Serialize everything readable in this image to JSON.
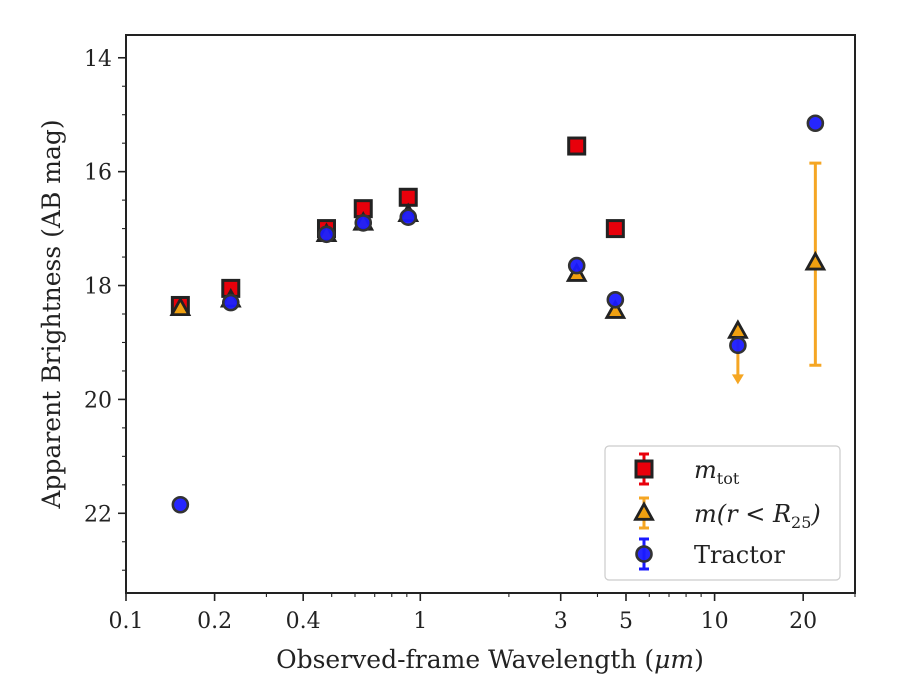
{
  "chart_data": {
    "type": "scatter",
    "xlabel": "Observed-frame Wavelength (",
    "xlabel_unit": "μm",
    "xlabel_close": ")",
    "ylabel": "Apparent Brightness (AB mag)",
    "xscale": "log",
    "xlim": [
      0.1,
      30
    ],
    "ylim": [
      23.4,
      13.6
    ],
    "y_inverted": true,
    "x_ticks": [
      {
        "value": 0.1,
        "label": "0.1"
      },
      {
        "value": 0.2,
        "label": "0.2"
      },
      {
        "value": 0.4,
        "label": "0.4"
      },
      {
        "value": 1,
        "label": "1"
      },
      {
        "value": 3,
        "label": "3"
      },
      {
        "value": 5,
        "label": "5"
      },
      {
        "value": 10,
        "label": "10"
      },
      {
        "value": 20,
        "label": "20"
      }
    ],
    "y_ticks": [
      {
        "value": 14,
        "label": "14"
      },
      {
        "value": 16,
        "label": "16"
      },
      {
        "value": 18,
        "label": "18"
      },
      {
        "value": 20,
        "label": "20"
      },
      {
        "value": 22,
        "label": "22"
      }
    ],
    "grid": false,
    "legend_position": "bottom-right",
    "series": [
      {
        "name": "m_tot",
        "legend_main": "m",
        "legend_sub": "tot",
        "marker": "square",
        "color": "#e8000b",
        "edge_color": "#222222",
        "error_color": "#e8000b",
        "points": [
          {
            "x": 0.153,
            "y": 18.35
          },
          {
            "x": 0.227,
            "y": 18.05
          },
          {
            "x": 0.48,
            "y": 17.0
          },
          {
            "x": 0.64,
            "y": 16.65
          },
          {
            "x": 0.91,
            "y": 16.45
          },
          {
            "x": 3.4,
            "y": 15.55
          },
          {
            "x": 4.6,
            "y": 17.0
          }
        ]
      },
      {
        "name": "m(r < R25)",
        "legend_main": "m(r < R",
        "legend_sub": "25",
        "legend_close": ")",
        "marker": "triangle",
        "color": "#f0a010",
        "edge_color": "#222222",
        "error_color": "#f5a623",
        "points": [
          {
            "x": 0.153,
            "y": 18.4
          },
          {
            "x": 0.227,
            "y": 18.25
          },
          {
            "x": 0.48,
            "y": 17.1
          },
          {
            "x": 0.64,
            "y": 16.9
          },
          {
            "x": 0.91,
            "y": 16.75
          },
          {
            "x": 3.4,
            "y": 17.8
          },
          {
            "x": 4.6,
            "y": 18.45
          },
          {
            "x": 12.0,
            "y": 18.8,
            "upper_limit": 19.7
          },
          {
            "x": 22.0,
            "y": 17.6,
            "yerr_low": 15.85,
            "yerr_high": 19.4
          }
        ]
      },
      {
        "name": "Tractor",
        "legend_main": "Tractor",
        "marker": "circle",
        "color": "#1a1aff",
        "edge_color": "#333333",
        "error_color": "#1a1aff",
        "points": [
          {
            "x": 0.153,
            "y": 21.85
          },
          {
            "x": 0.227,
            "y": 18.3
          },
          {
            "x": 0.48,
            "y": 17.1
          },
          {
            "x": 0.64,
            "y": 16.9
          },
          {
            "x": 0.91,
            "y": 16.8
          },
          {
            "x": 3.4,
            "y": 17.65
          },
          {
            "x": 4.6,
            "y": 18.25
          },
          {
            "x": 12.0,
            "y": 19.05
          },
          {
            "x": 22.0,
            "y": 15.15
          }
        ]
      }
    ]
  }
}
